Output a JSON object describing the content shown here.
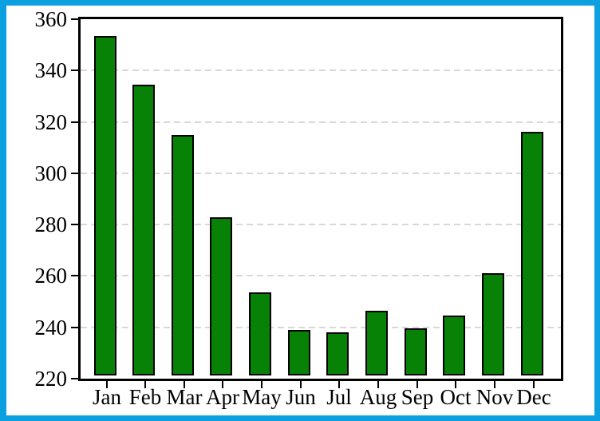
{
  "window": {
    "background": "#FFFFFF",
    "border_color": "#0DA0E0"
  },
  "chart_data": {
    "type": "bar",
    "title": "",
    "xlabel": "",
    "ylabel": "",
    "categories": [
      "Jan",
      "Feb",
      "Mar",
      "Apr",
      "May",
      "Jun",
      "Jul",
      "Aug",
      "Sep",
      "Oct",
      "Nov",
      "Dec"
    ],
    "values": [
      353.5,
      334.5,
      315,
      283,
      253.5,
      239,
      238,
      246.5,
      239.5,
      244.5,
      261,
      316
    ],
    "ylim": [
      220,
      360
    ],
    "yticks": [
      360,
      340,
      320,
      300,
      280,
      260,
      240,
      220
    ],
    "grid": "horizontal dashed gridlines at interior y ticks",
    "legend": "none",
    "bar_fill": "#078207",
    "bar_outline": "#000000",
    "gridline_color": "#D8D8D8",
    "axis_frame_color": "#000000",
    "tick_label_color": "#000000"
  }
}
